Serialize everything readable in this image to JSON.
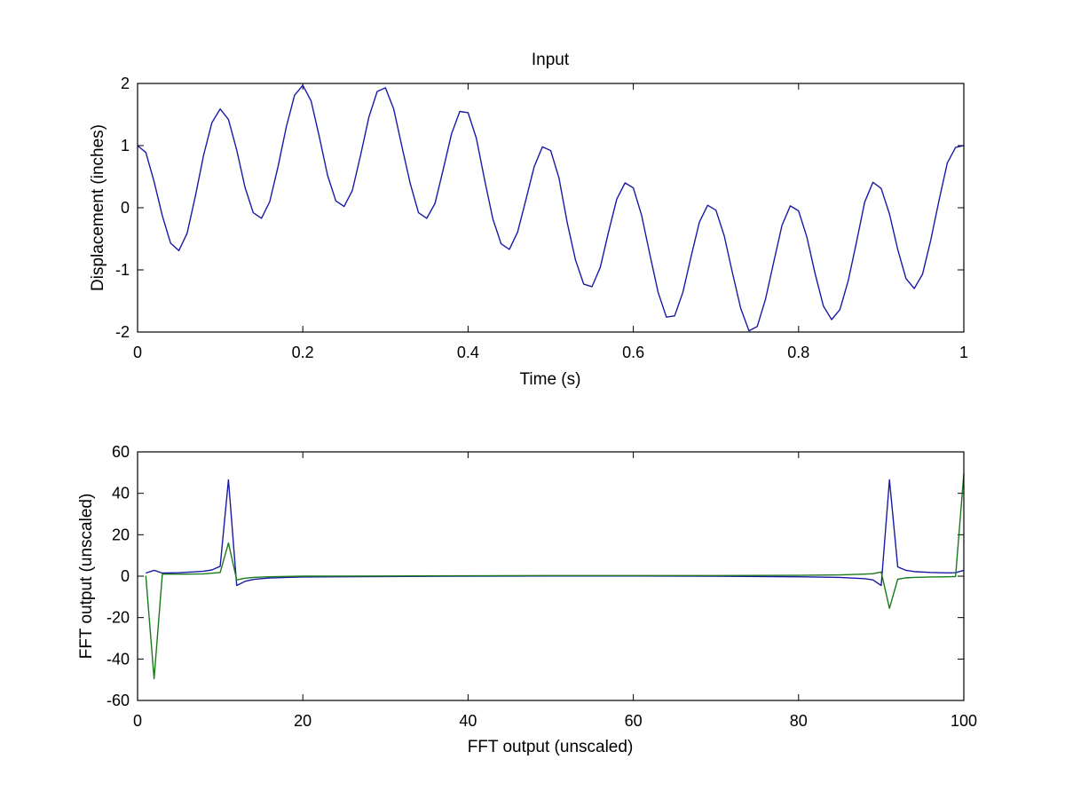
{
  "chart_data": [
    {
      "type": "line",
      "title": "Input",
      "xlabel": "Time (s)",
      "ylabel": "Displacement (inches)",
      "xlim": [
        0,
        1
      ],
      "ylim": [
        -2,
        2
      ],
      "xticks": [
        "0",
        "0.2",
        "0.4",
        "0.6",
        "0.8",
        "1"
      ],
      "yticks": [
        "2",
        "1",
        "0",
        "-1",
        "-2"
      ],
      "xtick_values": [
        0,
        0.2,
        0.4,
        0.6,
        0.8,
        1
      ],
      "ytick_values": [
        2,
        1,
        0,
        -1,
        -2
      ],
      "grid": false,
      "series": [
        {
          "color": "#1a1aa6",
          "x": [
            0,
            0.01,
            0.02,
            0.03,
            0.04,
            0.05,
            0.06,
            0.07,
            0.08,
            0.09,
            0.1,
            0.11,
            0.12,
            0.13,
            0.14,
            0.15,
            0.16,
            0.17,
            0.18,
            0.19,
            0.2,
            0.21,
            0.22,
            0.23,
            0.24,
            0.25,
            0.26,
            0.27,
            0.28,
            0.29,
            0.3,
            0.31,
            0.32,
            0.33,
            0.34,
            0.35,
            0.36,
            0.37,
            0.38,
            0.39,
            0.4,
            0.41,
            0.42,
            0.43,
            0.44,
            0.45,
            0.46,
            0.47,
            0.48,
            0.49,
            0.5,
            0.51,
            0.52,
            0.53,
            0.54,
            0.55,
            0.56,
            0.57,
            0.58,
            0.59,
            0.6,
            0.61,
            0.62,
            0.63,
            0.64,
            0.65,
            0.66,
            0.67,
            0.68,
            0.69,
            0.7,
            0.71,
            0.72,
            0.73,
            0.74,
            0.75,
            0.76,
            0.77,
            0.78,
            0.79,
            0.8,
            0.81,
            0.82,
            0.83,
            0.84,
            0.85,
            0.86,
            0.87,
            0.88,
            0.89,
            0.9,
            0.91,
            0.92,
            0.93,
            0.94,
            0.95,
            0.96,
            0.97,
            0.98,
            0.99,
            1.0
          ],
          "y": [
            1.0,
            0.89,
            0.42,
            -0.13,
            -0.57,
            -0.69,
            -0.41,
            0.19,
            0.85,
            1.37,
            1.59,
            1.42,
            0.93,
            0.33,
            -0.08,
            -0.17,
            0.1,
            0.66,
            1.3,
            1.81,
            1.97,
            1.72,
            1.14,
            0.52,
            0.11,
            0.02,
            0.28,
            0.85,
            1.46,
            1.87,
            1.93,
            1.59,
            0.98,
            0.39,
            -0.08,
            -0.17,
            0.07,
            0.62,
            1.19,
            1.55,
            1.53,
            1.12,
            0.45,
            -0.18,
            -0.58,
            -0.67,
            -0.39,
            0.13,
            0.66,
            0.98,
            0.92,
            0.48,
            -0.24,
            -0.84,
            -1.23,
            -1.27,
            -0.96,
            -0.39,
            0.14,
            0.4,
            0.32,
            -0.12,
            -0.75,
            -1.36,
            -1.76,
            -1.74,
            -1.36,
            -0.78,
            -0.23,
            0.04,
            -0.04,
            -0.45,
            -1.05,
            -1.62,
            -1.98,
            -1.91,
            -1.47,
            -0.87,
            -0.28,
            0.03,
            -0.05,
            -0.47,
            -1.06,
            -1.58,
            -1.8,
            -1.64,
            -1.18,
            -0.56,
            0.09,
            0.41,
            0.31,
            -0.1,
            -0.67,
            -1.14,
            -1.3,
            -1.07,
            -0.52,
            0.12,
            0.72,
            0.97,
            1.0
          ]
        }
      ]
    },
    {
      "type": "line",
      "title": "",
      "xlabel": "FFT output (unscaled)",
      "ylabel": "FFT output (unscaled)",
      "xlim": [
        0,
        100
      ],
      "ylim": [
        -60,
        60
      ],
      "xticks": [
        "0",
        "20",
        "40",
        "60",
        "80",
        "100"
      ],
      "yticks": [
        "60",
        "40",
        "20",
        "0",
        "-20",
        "-40",
        "-60"
      ],
      "xtick_values": [
        0,
        20,
        40,
        60,
        80,
        100
      ],
      "ytick_values": [
        60,
        40,
        20,
        0,
        -20,
        -40,
        -60
      ],
      "grid": false,
      "series": [
        {
          "color": "#1a1aa6",
          "x": [
            1,
            2,
            3,
            4,
            5,
            6,
            7,
            8,
            9,
            10,
            11,
            12,
            13,
            14,
            15,
            16,
            18,
            20,
            30,
            40,
            50,
            60,
            70,
            80,
            85,
            88,
            89,
            90,
            91,
            92,
            93,
            94,
            96,
            98,
            99,
            100
          ],
          "y": [
            1.5,
            2.8,
            1.5,
            1.6,
            1.7,
            1.9,
            2.1,
            2.4,
            3.0,
            4.8,
            46.5,
            -4.5,
            -2.5,
            -1.6,
            -1.2,
            -0.9,
            -0.6,
            -0.4,
            -0.2,
            0.0,
            0.1,
            0.1,
            0.0,
            -0.3,
            -0.6,
            -1.2,
            -1.8,
            -4.5,
            46.5,
            4.5,
            2.8,
            2.2,
            1.8,
            1.6,
            1.7,
            2.8
          ]
        },
        {
          "color": "#1a7a1a",
          "x": [
            1,
            2,
            3,
            4,
            6,
            8,
            10,
            11,
            12,
            13,
            14,
            16,
            20,
            30,
            40,
            50,
            60,
            70,
            80,
            85,
            88,
            89,
            90,
            91,
            92,
            93,
            94,
            96,
            98,
            99,
            100
          ],
          "y": [
            0.2,
            -49.5,
            1.0,
            1.0,
            1.0,
            1.1,
            1.8,
            16.0,
            -1.8,
            -1.0,
            -0.6,
            -0.3,
            0.0,
            0.1,
            0.2,
            0.3,
            0.3,
            0.3,
            0.4,
            0.6,
            1.0,
            1.2,
            2.0,
            -15.5,
            -1.5,
            -0.8,
            -0.6,
            -0.4,
            -0.3,
            -0.2,
            49.5
          ]
        }
      ]
    }
  ]
}
